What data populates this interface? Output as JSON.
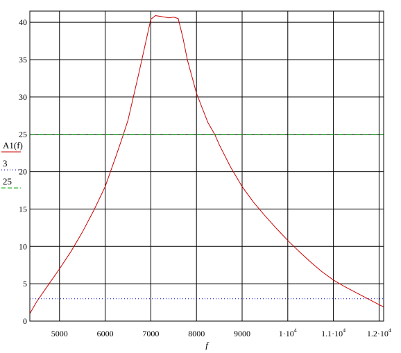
{
  "chart_data": {
    "type": "line",
    "xlabel": "f",
    "xlim": [
      4350,
      12100
    ],
    "ylim": [
      0,
      41.5
    ],
    "grid": true,
    "x_ticks": [
      {
        "value": 5000,
        "label": "5000"
      },
      {
        "value": 6000,
        "label": "6000"
      },
      {
        "value": 7000,
        "label": "7000"
      },
      {
        "value": 8000,
        "label": "8000"
      },
      {
        "value": 9000,
        "label": "9000"
      },
      {
        "value": 10000,
        "label": "1·10",
        "exp": "4"
      },
      {
        "value": 11000,
        "label": "1.1·10",
        "exp": "4"
      },
      {
        "value": 12000,
        "label": "1.2·10",
        "exp": "4"
      }
    ],
    "y_ticks": [
      0,
      5,
      10,
      15,
      20,
      25,
      30,
      35,
      40
    ],
    "legend": [
      {
        "label": "A1(f)",
        "color": "#cc0000",
        "style": "solid"
      },
      {
        "label": "3",
        "color": "#0000cc",
        "style": "dotted"
      },
      {
        "label": "25",
        "color": "#00aa00",
        "style": "dashed"
      }
    ],
    "series": [
      {
        "name": "A1(f)",
        "color": "#cc0000",
        "x": [
          4350,
          4500,
          4750,
          5000,
          5250,
          5500,
          5750,
          6000,
          6250,
          6400,
          6500,
          6750,
          7000,
          7100,
          7200,
          7300,
          7400,
          7500,
          7600,
          7700,
          7800,
          8000,
          8250,
          8400,
          8500,
          8750,
          9000,
          9250,
          9500,
          9750,
          10000,
          10250,
          10500,
          10750,
          11000,
          11250,
          11500,
          11750,
          12000,
          12100
        ],
        "y": [
          1.0,
          2.6,
          4.8,
          7.0,
          9.3,
          11.9,
          14.8,
          18.0,
          22.3,
          25.0,
          26.9,
          33.5,
          40.4,
          40.9,
          40.8,
          40.7,
          40.6,
          40.7,
          40.5,
          38.0,
          35.0,
          30.5,
          26.6,
          25.0,
          23.6,
          20.6,
          18.0,
          15.9,
          14.1,
          12.4,
          10.8,
          9.3,
          7.9,
          6.6,
          5.5,
          4.6,
          3.8,
          3.0,
          2.2,
          1.9
        ]
      },
      {
        "name": "3",
        "color": "#0000cc",
        "style": "dotted",
        "x": [
          4350,
          12100
        ],
        "y": [
          3,
          3
        ]
      },
      {
        "name": "25",
        "color": "#00aa00",
        "style": "dashed",
        "x": [
          4350,
          12100
        ],
        "y": [
          25,
          25
        ]
      }
    ]
  }
}
